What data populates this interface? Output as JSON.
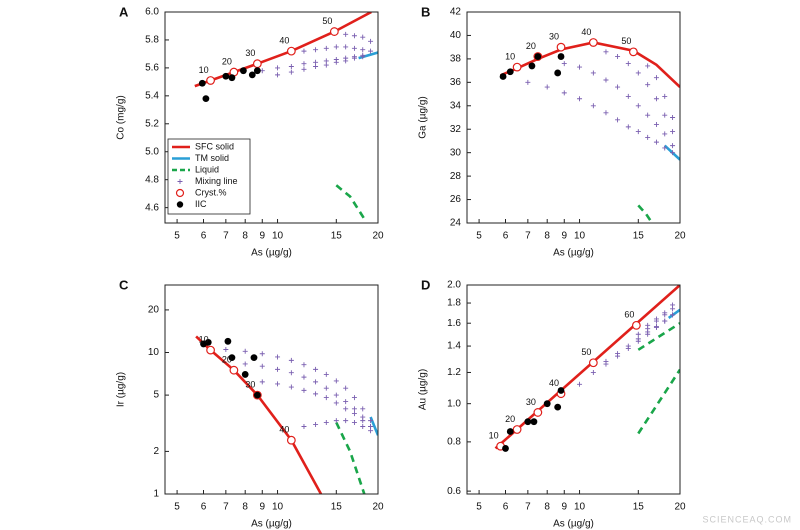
{
  "chart_data": [
    {
      "type": "scatter",
      "panel": "A",
      "xlabel": "As (µg/g)",
      "ylabel": "Co (mg/g)",
      "xlog": true,
      "ylog": false,
      "xlim": [
        4.6,
        20
      ],
      "xticks": [
        5,
        6,
        7,
        8,
        9,
        10,
        15,
        20
      ],
      "ylim": [
        4.49,
        6.0
      ],
      "yticks": [
        4.6,
        4.8,
        {
          "value": 5,
          "label": "5.0"
        },
        5.2,
        5.4,
        5.6,
        5.8,
        {
          "value": 6,
          "label": "6.0"
        }
      ],
      "legend": "lower left",
      "series": [
        {
          "name": "SFC solid",
          "color": "#e0201b",
          "style": "line",
          "x": [
            5.65,
            6.3,
            7.4,
            8.7,
            11.0,
            14.8,
            19.1
          ],
          "y": [
            5.47,
            5.51,
            5.57,
            5.63,
            5.72,
            5.86,
            6.0
          ]
        },
        {
          "name": "TM solid",
          "color": "#2a9fd6",
          "style": "line",
          "x": [
            17.5,
            20
          ],
          "y": [
            5.67,
            5.71
          ]
        },
        {
          "name": "Liquid",
          "color": "#1aa64a",
          "style": "dashed",
          "x": [
            15,
            16.5,
            18.2
          ],
          "y": [
            4.76,
            4.68,
            4.52
          ]
        },
        {
          "name": "Mixing line",
          "color": "#7a5fb0",
          "style": "plus",
          "x": [
            9,
            10,
            11,
            12,
            13,
            14,
            15,
            16,
            17,
            18,
            10,
            11,
            12,
            13,
            14,
            15,
            16,
            17,
            18,
            12,
            13,
            14,
            15,
            16,
            17,
            18,
            19,
            16,
            17,
            18,
            19
          ],
          "y": [
            5.58,
            5.6,
            5.61,
            5.63,
            5.64,
            5.65,
            5.66,
            5.67,
            5.68,
            5.69,
            5.55,
            5.57,
            5.59,
            5.61,
            5.62,
            5.64,
            5.65,
            5.67,
            5.68,
            5.72,
            5.73,
            5.74,
            5.75,
            5.75,
            5.74,
            5.73,
            5.72,
            5.84,
            5.83,
            5.82,
            5.79
          ]
        },
        {
          "name": "Cryst.%",
          "color": "#e0201b",
          "style": "open-circle",
          "x": [
            6.3,
            7.4,
            8.7,
            11.0,
            14.8
          ],
          "y": [
            5.51,
            5.57,
            5.63,
            5.72,
            5.86
          ],
          "point_labels": [
            10,
            20,
            30,
            40,
            50
          ]
        },
        {
          "name": "IIC",
          "color": "#000000",
          "style": "dot",
          "x": [
            5.95,
            6.1,
            7.0,
            7.3,
            7.9,
            8.4,
            8.7
          ],
          "y": [
            5.49,
            5.38,
            5.54,
            5.53,
            5.58,
            5.55,
            5.58
          ]
        }
      ]
    },
    {
      "type": "scatter",
      "panel": "B",
      "xlabel": "As (µg/g)",
      "ylabel": "Ga (µg/g)",
      "xlog": true,
      "ylog": false,
      "xlim": [
        4.6,
        20
      ],
      "xticks": [
        5,
        6,
        7,
        8,
        9,
        10,
        15,
        20
      ],
      "ylim": [
        24,
        42
      ],
      "yticks": [
        24,
        26,
        28,
        30,
        32,
        34,
        36,
        38,
        40,
        42
      ],
      "series": [
        {
          "color": "#e0201b",
          "style": "line",
          "x": [
            5.8,
            6.5,
            7.5,
            8.8,
            11,
            14.5,
            17,
            20
          ],
          "y": [
            36.6,
            37.2,
            38.0,
            38.8,
            39.4,
            38.7,
            37.5,
            35.6
          ]
        },
        {
          "color": "#2a9fd6",
          "style": "line",
          "x": [
            18,
            20
          ],
          "y": [
            30.6,
            29.4
          ]
        },
        {
          "color": "#1aa64a",
          "style": "dashed",
          "x": [
            15,
            15.8,
            16.5
          ],
          "y": [
            25.5,
            24.8,
            24.0
          ]
        },
        {
          "color": "#7a5fb0",
          "style": "plus",
          "x": [
            7,
            8,
            9,
            10,
            11,
            12,
            13,
            14,
            15,
            16,
            17,
            18,
            19,
            9,
            10,
            11,
            12,
            13,
            14,
            15,
            16,
            17,
            18,
            19,
            12,
            13,
            14,
            15,
            16,
            17,
            18,
            19,
            16,
            17,
            18,
            19
          ],
          "y": [
            36,
            35.6,
            35.1,
            34.6,
            34.0,
            33.4,
            32.8,
            32.2,
            31.8,
            31.3,
            30.9,
            30.4,
            30.0,
            37.6,
            37.3,
            36.8,
            36.2,
            35.6,
            34.8,
            34.0,
            33.2,
            32.4,
            31.6,
            30.6,
            38.6,
            38.2,
            37.6,
            36.8,
            35.8,
            34.6,
            33.2,
            31.8,
            37.4,
            36.4,
            34.8,
            33.0
          ]
        },
        {
          "color": "#e0201b",
          "style": "open-circle",
          "x": [
            6.5,
            7.5,
            8.8,
            11,
            14.5
          ],
          "y": [
            37.3,
            38.2,
            39.0,
            39.4,
            38.6
          ],
          "point_labels": [
            10,
            20,
            30,
            40,
            50
          ]
        },
        {
          "color": "#000000",
          "style": "dot",
          "x": [
            5.9,
            6.2,
            7.2,
            7.5,
            8.6,
            8.8
          ],
          "y": [
            36.5,
            36.9,
            37.4,
            38.2,
            36.8,
            38.2
          ]
        }
      ]
    },
    {
      "type": "scatter",
      "panel": "C",
      "xlabel": "As (µg/g)",
      "ylabel": "Ir (µg/g)",
      "xlog": true,
      "ylog": true,
      "xlim": [
        4.6,
        20
      ],
      "xticks": [
        5,
        6,
        7,
        8,
        9,
        10,
        15,
        20
      ],
      "ylim": [
        1,
        30
      ],
      "yticks": [
        1,
        2,
        5,
        10,
        20
      ],
      "series": [
        {
          "color": "#e0201b",
          "style": "line",
          "x": [
            5.7,
            6.3,
            7.4,
            8.7,
            11.0,
            13.5
          ],
          "y": [
            13,
            10.4,
            7.5,
            5.0,
            2.4,
            1.0
          ]
        },
        {
          "color": "#2a9fd6",
          "style": "line",
          "x": [
            19,
            20
          ],
          "y": [
            3.5,
            2.6
          ]
        },
        {
          "color": "#1aa64a",
          "style": "dashed",
          "x": [
            15,
            16.5,
            18.2
          ],
          "y": [
            3.2,
            2.0,
            1.0
          ]
        },
        {
          "color": "#7a5fb0",
          "style": "plus",
          "x": [
            7,
            8,
            9,
            10,
            11,
            12,
            13,
            14,
            15,
            16,
            17,
            18,
            19,
            8,
            9,
            10,
            11,
            12,
            13,
            14,
            15,
            16,
            17,
            18,
            19,
            9,
            10,
            11,
            12,
            13,
            14,
            15,
            16,
            17,
            18,
            19,
            12,
            13,
            14,
            15,
            16,
            17,
            18,
            19
          ],
          "y": [
            10.5,
            10.2,
            9.8,
            9.3,
            8.8,
            8.2,
            7.6,
            7.0,
            6.3,
            5.6,
            4.8,
            4.0,
            3.3,
            8.3,
            8.0,
            7.6,
            7.2,
            6.7,
            6.2,
            5.6,
            5.0,
            4.5,
            4.0,
            3.5,
            3.0,
            6.2,
            6.0,
            5.7,
            5.4,
            5.1,
            4.8,
            4.4,
            4.0,
            3.7,
            3.3,
            3.0,
            3.0,
            3.1,
            3.2,
            3.3,
            3.3,
            3.2,
            3.0,
            2.8
          ]
        },
        {
          "color": "#e0201b",
          "style": "open-circle",
          "x": [
            6.3,
            7.4,
            8.7,
            11.0
          ],
          "y": [
            10.4,
            7.5,
            5.0,
            2.4
          ],
          "point_labels": [
            10,
            20,
            30,
            40
          ]
        },
        {
          "color": "#000000",
          "style": "dot",
          "x": [
            6.0,
            6.2,
            7.1,
            7.3,
            8.0,
            8.5,
            8.7
          ],
          "y": [
            11.5,
            11.8,
            12,
            9.2,
            7.0,
            9.2,
            5.0
          ]
        }
      ]
    },
    {
      "type": "scatter",
      "panel": "D",
      "xlabel": "As (µg/g)",
      "ylabel": "Au (µg/g)",
      "xlog": true,
      "ylog": true,
      "xlim": [
        4.6,
        20
      ],
      "xticks": [
        5,
        6,
        7,
        8,
        9,
        10,
        15,
        20
      ],
      "ylim": [
        0.59,
        2.0
      ],
      "yticks": [
        0.6,
        0.8,
        {
          "value": 1,
          "label": "1.0"
        },
        1.2,
        1.4,
        1.6,
        1.8,
        {
          "value": 2,
          "label": "2.0"
        }
      ],
      "series": [
        {
          "color": "#e0201b",
          "style": "line",
          "x": [
            5.6,
            20
          ],
          "y": [
            0.77,
            2.0
          ]
        },
        {
          "color": "#2a9fd6",
          "style": "line",
          "x": [
            18.5,
            20
          ],
          "y": [
            1.65,
            1.73
          ]
        },
        {
          "color": "#1aa64a",
          "style": "dashed",
          "x": [
            15,
            20
          ],
          "y": [
            1.37,
            1.6
          ]
        },
        {
          "color": "#1aa64a",
          "style": "dashed",
          "x": [
            15,
            20
          ],
          "y": [
            0.84,
            1.22
          ]
        },
        {
          "color": "#7a5fb0",
          "style": "plus",
          "x": [
            10,
            11,
            12,
            13,
            14,
            15,
            16,
            17,
            18,
            19,
            12,
            13,
            14,
            15,
            16,
            17,
            18,
            19,
            15,
            16,
            17,
            18,
            19,
            16,
            17,
            18,
            19
          ],
          "y": [
            1.12,
            1.2,
            1.28,
            1.34,
            1.4,
            1.46,
            1.52,
            1.57,
            1.62,
            1.68,
            1.26,
            1.32,
            1.38,
            1.44,
            1.5,
            1.56,
            1.62,
            1.68,
            1.5,
            1.55,
            1.62,
            1.68,
            1.74,
            1.58,
            1.64,
            1.7,
            1.78
          ]
        },
        {
          "color": "#e0201b",
          "style": "open-circle",
          "x": [
            5.8,
            6.5,
            7.5,
            8.8,
            11.0,
            14.8
          ],
          "y": [
            0.78,
            0.86,
            0.95,
            1.06,
            1.27,
            1.58
          ],
          "point_labels": [
            10,
            20,
            30,
            40,
            50,
            60
          ]
        },
        {
          "color": "#000000",
          "style": "dot",
          "x": [
            6.0,
            6.2,
            7.0,
            7.3,
            8.0,
            8.6,
            8.8
          ],
          "y": [
            0.77,
            0.85,
            0.9,
            0.9,
            1.0,
            0.98,
            1.08
          ]
        }
      ]
    }
  ],
  "watermark": "SCIENCEAQ.COM"
}
